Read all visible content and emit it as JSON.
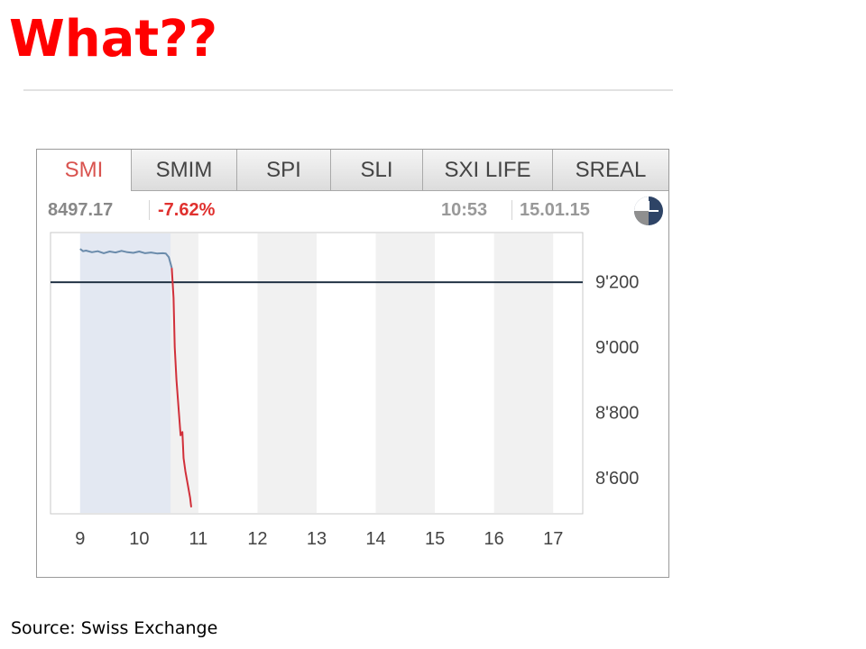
{
  "slide": {
    "title": "What??",
    "source": "Source: Swiss Exchange"
  },
  "widget": {
    "tabs": [
      {
        "label": "SMI",
        "active": true
      },
      {
        "label": "SMIM",
        "active": false
      },
      {
        "label": "SPI",
        "active": false
      },
      {
        "label": "SLI",
        "active": false
      },
      {
        "label": "SXI LIFE",
        "active": false
      },
      {
        "label": "SREAL",
        "active": false
      }
    ],
    "last_value": "8497.17",
    "change_pct": "-7.62%",
    "time": "10:53",
    "date": "15.01.15",
    "status_icon": "clock-icon"
  },
  "colors": {
    "title": "#ff0000",
    "line_before": "#6a8bab",
    "line_after": "#d1303a",
    "session_shade": "#e3e8f2",
    "reference_line": "#223344",
    "change_negative": "#e0312f"
  },
  "chart_data": {
    "type": "line",
    "x_ticks": [
      9,
      10,
      11,
      12,
      13,
      14,
      15,
      16,
      17
    ],
    "y_ticks": [
      8600,
      8800,
      9000,
      9200
    ],
    "y_tick_labels": [
      "8'600",
      "8'800",
      "9'000",
      "9'200"
    ],
    "xlim": [
      8.5,
      17.5
    ],
    "ylim": [
      8490,
      9350
    ],
    "reference_line": 9198,
    "shaded_session": [
      9,
      10.53
    ],
    "series": [
      {
        "segment": "before",
        "x": [
          9.0,
          9.05,
          9.1,
          9.2,
          9.3,
          9.4,
          9.5,
          9.6,
          9.7,
          9.8,
          9.9,
          10.0,
          10.1,
          10.2,
          10.3,
          10.4,
          10.45,
          10.5,
          10.55
        ],
        "y": [
          9300,
          9293,
          9295,
          9290,
          9293,
          9287,
          9292,
          9289,
          9294,
          9290,
          9288,
          9292,
          9287,
          9289,
          9286,
          9287,
          9286,
          9275,
          9242
        ]
      },
      {
        "segment": "after",
        "x": [
          10.55,
          10.58,
          10.6,
          10.63,
          10.67,
          10.7,
          10.73,
          10.75,
          10.78,
          10.82,
          10.86,
          10.88
        ],
        "y": [
          9242,
          9150,
          9000,
          8900,
          8800,
          8730,
          8740,
          8660,
          8620,
          8580,
          8540,
          8510
        ]
      }
    ]
  }
}
